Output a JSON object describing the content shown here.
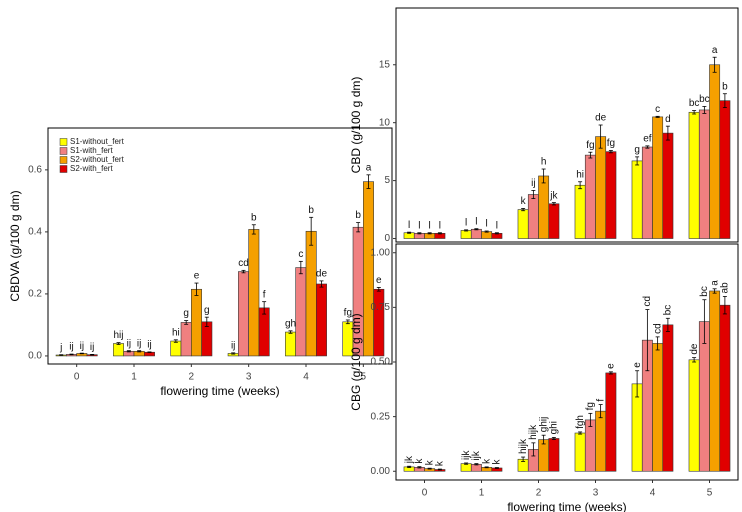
{
  "chart_data": [
    {
      "type": "bar",
      "ylabel": "CBDVA (g/100 g dm)",
      "xlabel": "flowering time (weeks)",
      "categories": [
        "0",
        "1",
        "2",
        "3",
        "4",
        "5"
      ],
      "ylim": [
        -0.026,
        0.735
      ],
      "yticks": [
        {
          "value": 0,
          "label": "0.0"
        },
        0.2,
        0.4,
        0.6
      ],
      "legend": "top-left",
      "series": [
        {
          "name": "S1-without_fert",
          "color": "#ffff00",
          "values": [
            0.003,
            0.04,
            0.048,
            0.008,
            0.077,
            0.11
          ],
          "errors": [
            0.001,
            0.003,
            0.004,
            0.002,
            0.004,
            0.006
          ],
          "letters": [
            "j",
            "hij",
            "hi",
            "ij",
            "gh",
            "fg"
          ]
        },
        {
          "name": "S1-with_fert",
          "color": "#f08080",
          "values": [
            0.005,
            0.015,
            0.108,
            0.272,
            0.285,
            0.415
          ],
          "errors": [
            0.001,
            0.002,
            0.006,
            0.004,
            0.02,
            0.015
          ],
          "letters": [
            "ij",
            "ij",
            "g",
            "cd",
            "c",
            "b"
          ]
        },
        {
          "name": "S2-without_fert",
          "color": "#f5a000",
          "values": [
            0.008,
            0.015,
            0.215,
            0.408,
            0.402,
            0.562
          ],
          "errors": [
            0.001,
            0.002,
            0.02,
            0.015,
            0.045,
            0.022
          ],
          "letters": [
            "ij",
            "ij",
            "e",
            "b",
            "b",
            "a"
          ]
        },
        {
          "name": "S2-with_fert",
          "color": "#e00000",
          "values": [
            0.004,
            0.012,
            0.11,
            0.155,
            0.232,
            0.215
          ],
          "errors": [
            0.001,
            0.001,
            0.015,
            0.02,
            0.01,
            0.006
          ],
          "letters": [
            "ij",
            "ij",
            "g",
            "f",
            "de",
            "e"
          ]
        }
      ]
    },
    {
      "type": "bar",
      "ylabel": "CBD (g/100 g dm)",
      "ylim": [
        -0.3,
        19.9
      ],
      "yticks": [
        0,
        5,
        10,
        15
      ],
      "series": [
        {
          "color": "#ffff00",
          "values": [
            0.5,
            0.7,
            2.5,
            4.6,
            6.7,
            10.9
          ],
          "errors": [
            0.05,
            0.05,
            0.1,
            0.3,
            0.35,
            0.15
          ],
          "letters": [
            "l",
            "l",
            "k",
            "hi",
            "g",
            "bc"
          ]
        },
        {
          "color": "#f08080",
          "values": [
            0.45,
            0.8,
            3.8,
            7.2,
            7.9,
            11.1
          ],
          "errors": [
            0.05,
            0.05,
            0.35,
            0.25,
            0.1,
            0.3
          ],
          "letters": [
            "l",
            "l",
            "ij",
            "fg",
            "ef",
            "bc"
          ]
        },
        {
          "color": "#f5a000",
          "values": [
            0.45,
            0.6,
            5.4,
            8.8,
            10.5,
            15.0
          ],
          "errors": [
            0.05,
            0.05,
            0.6,
            1.0,
            0.05,
            0.65
          ],
          "letters": [
            "l",
            "l",
            "h",
            "de",
            "c",
            "a"
          ]
        },
        {
          "color": "#e00000",
          "values": [
            0.45,
            0.45,
            3.0,
            7.5,
            9.1,
            11.9
          ],
          "errors": [
            0.05,
            0.05,
            0.1,
            0.1,
            0.6,
            0.6
          ],
          "letters": [
            "l",
            "l",
            "jk",
            "fg",
            "d",
            "b"
          ]
        }
      ]
    },
    {
      "type": "bar",
      "ylabel": "CBG (g/100 g dm)",
      "xlabel": "flowering time (weeks)",
      "categories": [
        "0",
        "1",
        "2",
        "3",
        "4",
        "5"
      ],
      "ylim": [
        -0.04,
        1.04
      ],
      "yticks": [
        {
          "value": 0,
          "label": "0.00"
        },
        0.25,
        {
          "value": 0.5,
          "label": "0.50"
        },
        0.75,
        {
          "value": 1,
          "label": "1.00"
        }
      ],
      "series": [
        {
          "color": "#ffff00",
          "values": [
            0.02,
            0.035,
            0.055,
            0.175,
            0.4,
            0.51
          ],
          "errors": [
            0.003,
            0.003,
            0.01,
            0.005,
            0.06,
            0.01
          ],
          "letters": [
            "jk",
            "ijk",
            "hijk",
            "fgh",
            "e",
            "de"
          ]
        },
        {
          "color": "#f08080",
          "values": [
            0.018,
            0.032,
            0.1,
            0.235,
            0.6,
            0.685
          ],
          "errors": [
            0.003,
            0.003,
            0.03,
            0.03,
            0.14,
            0.1
          ],
          "letters": [
            "k",
            "ijk",
            "hijk",
            "fg",
            "cd",
            "bc"
          ]
        },
        {
          "color": "#f5a000",
          "values": [
            0.012,
            0.018,
            0.145,
            0.275,
            0.585,
            0.825
          ],
          "errors": [
            0.002,
            0.002,
            0.02,
            0.03,
            0.03,
            0.01
          ],
          "letters": [
            "k",
            "k",
            "ghij",
            "f",
            "cd",
            "a"
          ]
        },
        {
          "color": "#e00000",
          "values": [
            0.008,
            0.015,
            0.15,
            0.45,
            0.67,
            0.76
          ],
          "errors": [
            0.002,
            0.002,
            0.005,
            0.005,
            0.03,
            0.04
          ],
          "letters": [
            "k",
            "k",
            "ghi",
            "e",
            "bc",
            "ab"
          ]
        }
      ]
    }
  ]
}
